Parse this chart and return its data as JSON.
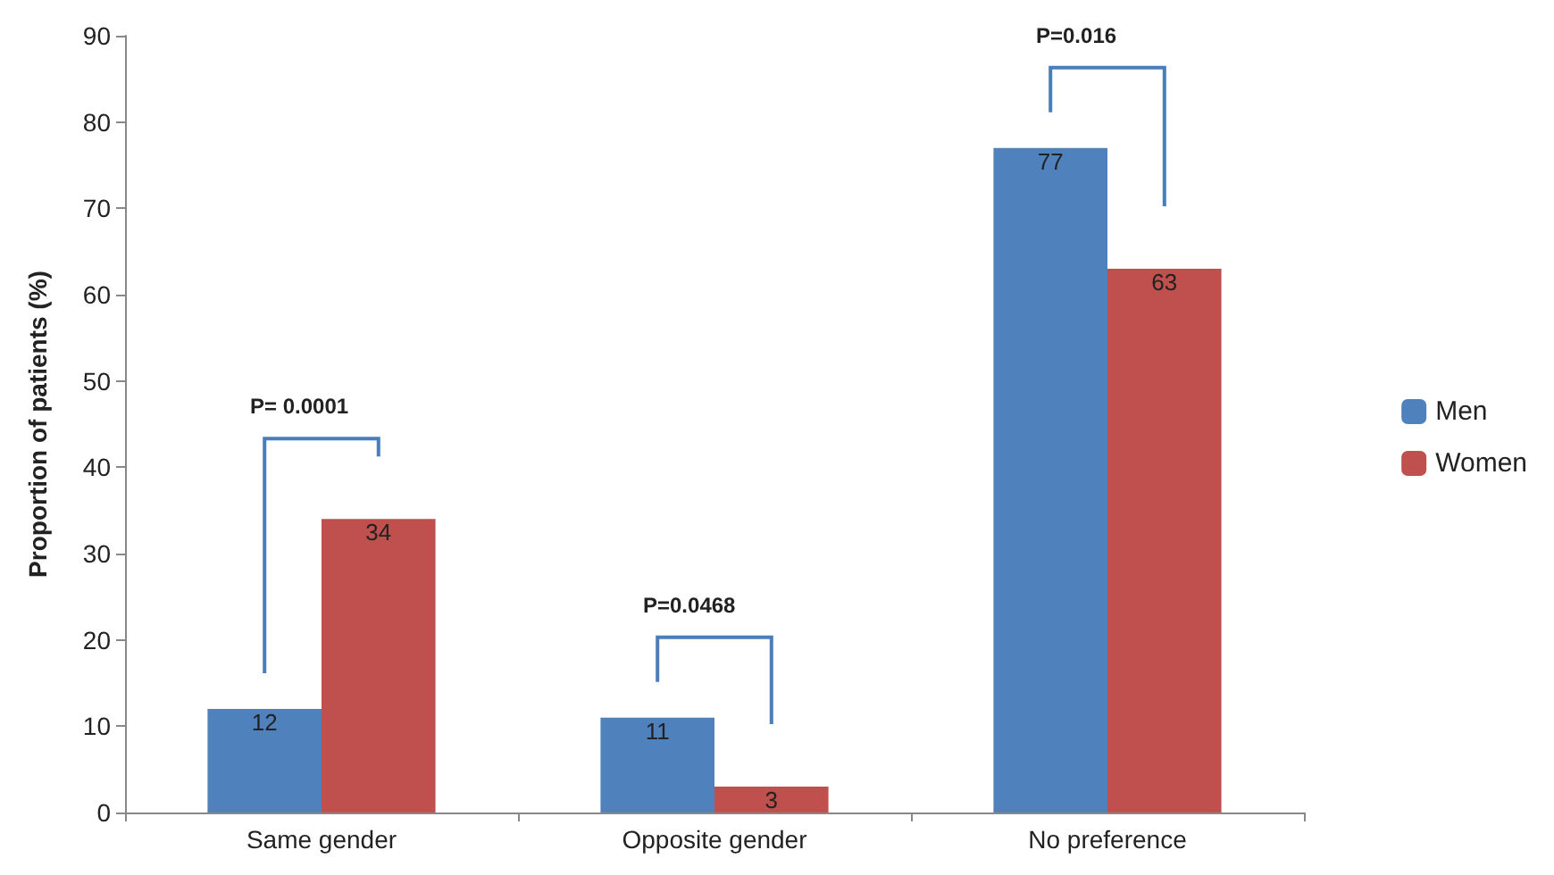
{
  "chart_data": {
    "type": "bar",
    "ylabel": "Proportion of patients (%)",
    "categories": [
      "Same gender",
      "Opposite gender",
      "No preference"
    ],
    "series": [
      {
        "name": "Men",
        "color": "#4f81bd",
        "values": [
          12,
          11,
          77
        ]
      },
      {
        "name": "Women",
        "color": "#c0504d",
        "values": [
          34,
          3,
          63
        ]
      }
    ],
    "ylim": [
      0,
      90
    ],
    "yticks": [
      0,
      10,
      20,
      30,
      40,
      50,
      60,
      70,
      80,
      90
    ],
    "grid": false,
    "legend": "right",
    "data_labels": true,
    "annotations": [
      "P= 0.0001",
      "P=0.0468",
      "P=0.016"
    ]
  }
}
